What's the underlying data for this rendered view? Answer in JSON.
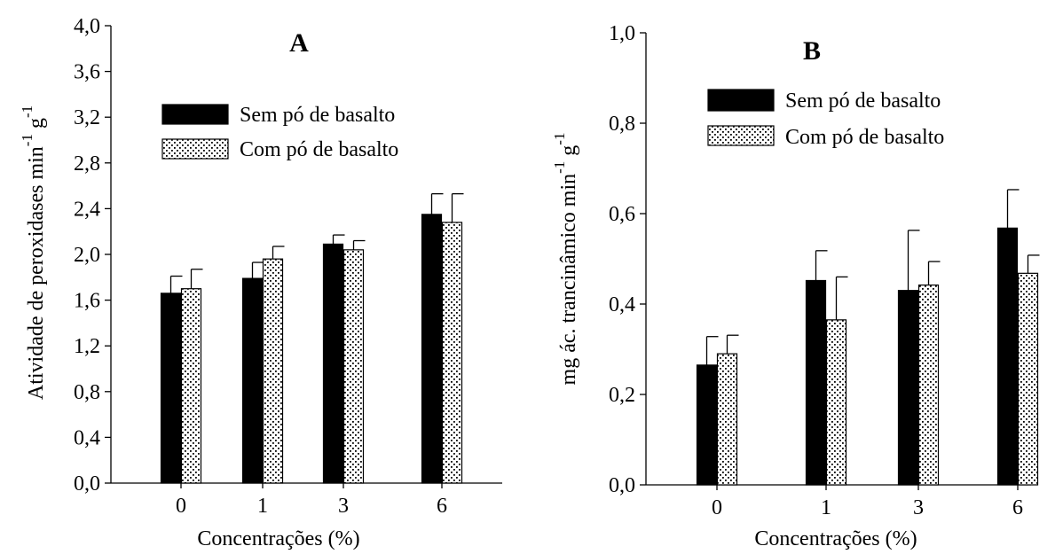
{
  "chart_data": [
    {
      "type": "bar",
      "title": "A",
      "xlabel": "Concentrações (%)",
      "ylabel_main": "Atividade de peroxidases min",
      "ylabel_sup1": "-1",
      "ylabel_mid": " g",
      "ylabel_sup2": "-1",
      "categories": [
        "0",
        "1",
        "3",
        "6"
      ],
      "ylim": [
        0,
        4
      ],
      "yticks": [
        "0,0",
        "0,4",
        "0,8",
        "1,2",
        "1,6",
        "2,0",
        "2,4",
        "2,8",
        "3,2",
        "3,6",
        "4,0"
      ],
      "ytick_values": [
        0,
        0.4,
        0.8,
        1.2,
        1.6,
        2.0,
        2.4,
        2.8,
        3.2,
        3.6,
        4.0
      ],
      "legend_position": "top-right",
      "series": [
        {
          "name": "Sem pó de basalto",
          "pattern": "solid",
          "values": [
            1.66,
            1.79,
            2.09,
            2.35
          ],
          "errors": [
            0.15,
            0.14,
            0.08,
            0.18
          ]
        },
        {
          "name": "Com pó de basalto",
          "pattern": "dotted",
          "values": [
            1.7,
            1.96,
            2.04,
            2.28
          ],
          "errors": [
            0.17,
            0.11,
            0.08,
            0.25
          ]
        }
      ]
    },
    {
      "type": "bar",
      "title": "B",
      "xlabel": "Concentrações (%)",
      "ylabel_main": "mg ác. trancinâmico min",
      "ylabel_sup1": "-1",
      "ylabel_mid": " g",
      "ylabel_sup2": "-1",
      "categories": [
        "0",
        "1",
        "3",
        "6"
      ],
      "ylim": [
        0,
        1
      ],
      "yticks": [
        "0,0",
        "0,2",
        "0,4",
        "0,6",
        "0,8",
        "1,0"
      ],
      "ytick_values": [
        0,
        0.2,
        0.4,
        0.6,
        0.8,
        1.0
      ],
      "legend_position": "top-right",
      "series": [
        {
          "name": "Sem pó de basalto",
          "pattern": "solid",
          "values": [
            0.265,
            0.452,
            0.43,
            0.568
          ],
          "errors": [
            0.063,
            0.066,
            0.133,
            0.085
          ]
        },
        {
          "name": "Com pó de basalto",
          "pattern": "dotted",
          "values": [
            0.29,
            0.365,
            0.442,
            0.468
          ],
          "errors": [
            0.041,
            0.095,
            0.052,
            0.04
          ]
        }
      ]
    }
  ]
}
